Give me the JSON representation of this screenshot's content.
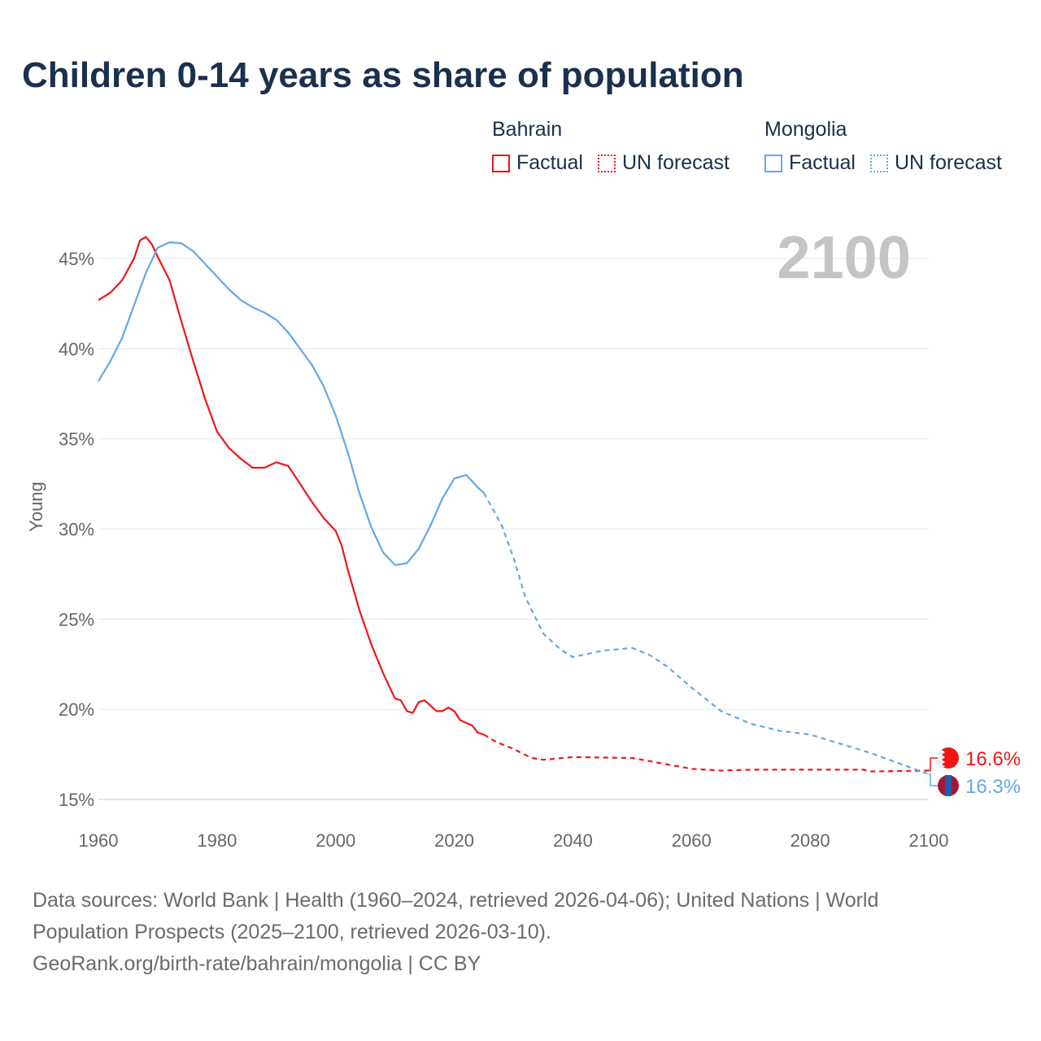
{
  "title": "Children 0-14 years as share of population",
  "legend": {
    "groups": [
      {
        "name": "Bahrain",
        "color": "#f01616",
        "factual": "Factual",
        "forecast": "UN forecast"
      },
      {
        "name": "Mongolia",
        "color": "#62a8e8",
        "factual": "Factual",
        "forecast": "UN forecast"
      }
    ]
  },
  "year_label": "2100",
  "footer": {
    "line1": "Data sources: World Bank | Health (1960–2024, retrieved 2026-04-06); United Nations | World",
    "line2": "Population Prospects (2025–2100, retrieved 2026-03-10).",
    "line3": "GeoRank.org/birth-rate/bahrain/mongolia | CC BY"
  },
  "chart_data": {
    "type": "line",
    "title": "Children 0-14 years as share of population",
    "xlabel": "",
    "ylabel": "Young",
    "xlim": [
      1960,
      2100
    ],
    "ylim": [
      15,
      46.5
    ],
    "xticks": [
      "1960",
      "1980",
      "2000",
      "2020",
      "2040",
      "2060",
      "2080",
      "2100"
    ],
    "yticks": [
      "15%",
      "20%",
      "25%",
      "30%",
      "35%",
      "40%",
      "45%"
    ],
    "grid": true,
    "legend_position": "top-right",
    "series": [
      {
        "name": "Bahrain",
        "color": "#f01616",
        "end_label": "16.6%",
        "factual": [
          [
            1960,
            42.7
          ],
          [
            1962,
            43.1
          ],
          [
            1964,
            43.8
          ],
          [
            1966,
            45.0
          ],
          [
            1967,
            46.0
          ],
          [
            1968,
            46.2
          ],
          [
            1969,
            45.8
          ],
          [
            1970,
            45.1
          ],
          [
            1972,
            43.8
          ],
          [
            1974,
            41.5
          ],
          [
            1976,
            39.3
          ],
          [
            1978,
            37.2
          ],
          [
            1980,
            35.4
          ],
          [
            1982,
            34.5
          ],
          [
            1984,
            33.9
          ],
          [
            1986,
            33.4
          ],
          [
            1988,
            33.4
          ],
          [
            1990,
            33.7
          ],
          [
            1992,
            33.5
          ],
          [
            1994,
            32.5
          ],
          [
            1996,
            31.5
          ],
          [
            1998,
            30.6
          ],
          [
            2000,
            29.9
          ],
          [
            2001,
            29.1
          ],
          [
            2002,
            27.8
          ],
          [
            2004,
            25.5
          ],
          [
            2006,
            23.6
          ],
          [
            2008,
            22.0
          ],
          [
            2010,
            20.6
          ],
          [
            2011,
            20.5
          ],
          [
            2012,
            19.9
          ],
          [
            2013,
            19.8
          ],
          [
            2014,
            20.4
          ],
          [
            2015,
            20.5
          ],
          [
            2016,
            20.2
          ],
          [
            2017,
            19.9
          ],
          [
            2018,
            19.9
          ],
          [
            2019,
            20.1
          ],
          [
            2020,
            19.9
          ],
          [
            2021,
            19.4
          ],
          [
            2023,
            19.1
          ],
          [
            2024,
            18.7
          ],
          [
            2025,
            18.6
          ]
        ],
        "forecast": [
          [
            2025,
            18.6
          ],
          [
            2027,
            18.2
          ],
          [
            2030,
            17.8
          ],
          [
            2033,
            17.3
          ],
          [
            2035,
            17.2
          ],
          [
            2040,
            17.35
          ],
          [
            2050,
            17.3
          ],
          [
            2055,
            17.0
          ],
          [
            2060,
            16.7
          ],
          [
            2065,
            16.6
          ],
          [
            2070,
            16.65
          ],
          [
            2080,
            16.65
          ],
          [
            2089,
            16.65
          ],
          [
            2090,
            16.55
          ],
          [
            2100,
            16.6
          ]
        ]
      },
      {
        "name": "Mongolia",
        "color": "#62a8e8",
        "end_label": "16.3%",
        "factual": [
          [
            1960,
            38.2
          ],
          [
            1962,
            39.3
          ],
          [
            1964,
            40.6
          ],
          [
            1966,
            42.4
          ],
          [
            1968,
            44.2
          ],
          [
            1970,
            45.6
          ],
          [
            1972,
            45.9
          ],
          [
            1974,
            45.85
          ],
          [
            1976,
            45.4
          ],
          [
            1978,
            44.7
          ],
          [
            1980,
            44.0
          ],
          [
            1982,
            43.3
          ],
          [
            1984,
            42.7
          ],
          [
            1986,
            42.3
          ],
          [
            1988,
            42.0
          ],
          [
            1990,
            41.6
          ],
          [
            1992,
            40.9
          ],
          [
            1994,
            40.0
          ],
          [
            1996,
            39.1
          ],
          [
            1998,
            37.9
          ],
          [
            2000,
            36.3
          ],
          [
            2002,
            34.3
          ],
          [
            2004,
            32.0
          ],
          [
            2006,
            30.1
          ],
          [
            2008,
            28.7
          ],
          [
            2010,
            28.0
          ],
          [
            2012,
            28.1
          ],
          [
            2014,
            28.9
          ],
          [
            2016,
            30.2
          ],
          [
            2018,
            31.7
          ],
          [
            2020,
            32.8
          ],
          [
            2022,
            33.0
          ],
          [
            2024,
            32.3
          ],
          [
            2025,
            32.0
          ]
        ],
        "forecast": [
          [
            2025,
            32.0
          ],
          [
            2028,
            30.2
          ],
          [
            2030,
            28.4
          ],
          [
            2032,
            26.2
          ],
          [
            2035,
            24.2
          ],
          [
            2038,
            23.3
          ],
          [
            2040,
            22.9
          ],
          [
            2045,
            23.25
          ],
          [
            2050,
            23.4
          ],
          [
            2053,
            23.0
          ],
          [
            2056,
            22.35
          ],
          [
            2060,
            21.2
          ],
          [
            2065,
            19.9
          ],
          [
            2070,
            19.2
          ],
          [
            2075,
            18.8
          ],
          [
            2080,
            18.6
          ],
          [
            2085,
            18.1
          ],
          [
            2090,
            17.6
          ],
          [
            2095,
            17.0
          ],
          [
            2100,
            16.4
          ]
        ]
      }
    ]
  }
}
